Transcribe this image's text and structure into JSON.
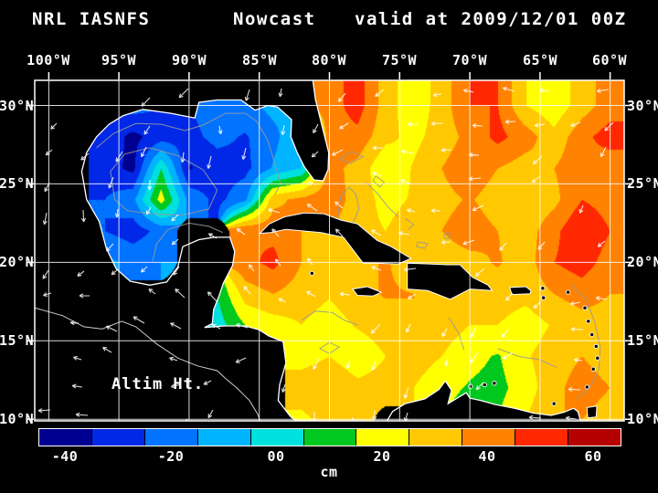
{
  "title": {
    "system": "NRL IASNFS",
    "product": "Nowcast",
    "valid": "valid at 2009/12/01 00Z"
  },
  "map": {
    "field_label": "Altim Ht.",
    "lon_ticks": [
      "100°W",
      "95°W",
      "90°W",
      "85°W",
      "80°W",
      "75°W",
      "70°W",
      "65°W",
      "60°W"
    ],
    "lat_ticks": [
      "30°N",
      "25°N",
      "20°N",
      "15°N",
      "10°N"
    ]
  },
  "chart_data": {
    "type": "heatmap",
    "title": "NRL IASNFS Nowcast valid at 2009/12/01 00Z",
    "variable": "Altim Ht.",
    "units": "cm",
    "null_means": "land or outside model domain (shown black)",
    "lons_degW": [
      100,
      98,
      96,
      94,
      92,
      90,
      88,
      86,
      84,
      82,
      80,
      78,
      76,
      74,
      72,
      70,
      68,
      66,
      64,
      62,
      60
    ],
    "lats_degN": [
      30,
      28,
      26,
      24,
      22,
      20,
      18,
      16,
      14,
      12,
      10
    ],
    "values": [
      [
        null,
        null,
        null,
        -20,
        -25,
        -25,
        -20,
        -18,
        -12,
        null,
        40,
        50,
        30,
        18,
        30,
        45,
        45,
        25,
        18,
        30,
        40
      ],
      [
        null,
        null,
        -28,
        -38,
        -30,
        -28,
        -22,
        -26,
        -18,
        -5,
        40,
        42,
        28,
        22,
        30,
        38,
        48,
        40,
        28,
        42,
        50
      ],
      [
        null,
        null,
        -30,
        -38,
        5,
        -36,
        -30,
        -28,
        -14,
        -5,
        38,
        32,
        16,
        26,
        35,
        42,
        35,
        30,
        35,
        42,
        38
      ],
      [
        null,
        null,
        -25,
        -18,
        20,
        -18,
        -28,
        -18,
        32,
        38,
        42,
        30,
        22,
        26,
        32,
        36,
        30,
        26,
        32,
        45,
        40
      ],
      [
        null,
        null,
        -25,
        -30,
        -22,
        null,
        null,
        45,
        42,
        35,
        35,
        28,
        25,
        30,
        35,
        40,
        35,
        30,
        42,
        55,
        45
      ],
      [
        null,
        null,
        -12,
        -18,
        -15,
        null,
        null,
        42,
        48,
        35,
        32,
        32,
        36,
        30,
        30,
        32,
        36,
        30,
        45,
        50,
        40
      ],
      [
        null,
        null,
        null,
        null,
        null,
        null,
        5,
        30,
        35,
        30,
        26,
        32,
        36,
        35,
        30,
        30,
        30,
        28,
        35,
        40,
        35
      ],
      [
        null,
        null,
        null,
        null,
        null,
        null,
        0,
        15,
        20,
        25,
        20,
        26,
        30,
        35,
        30,
        25,
        25,
        20,
        26,
        30,
        30
      ],
      [
        null,
        null,
        null,
        null,
        null,
        null,
        null,
        null,
        null,
        20,
        25,
        18,
        25,
        30,
        25,
        18,
        14,
        24,
        30,
        35,
        30
      ],
      [
        null,
        null,
        null,
        null,
        null,
        null,
        null,
        null,
        null,
        32,
        35,
        28,
        30,
        25,
        18,
        14,
        12,
        20,
        32,
        40,
        35
      ],
      [
        null,
        null,
        null,
        null,
        null,
        null,
        null,
        null,
        null,
        22,
        30,
        26,
        null,
        null,
        null,
        10,
        15,
        25,
        35,
        35,
        30
      ]
    ],
    "colorbar": {
      "min": -45,
      "max": 65,
      "step": 10,
      "colors": [
        "#000090",
        "#0028e6",
        "#0073ff",
        "#00b4ff",
        "#00e0dc",
        "#00c81e",
        "#ffff00",
        "#ffc800",
        "#ff8200",
        "#ff2800",
        "#b40000"
      ],
      "tick_labels": [
        "-40",
        "-20",
        "00",
        "20",
        "40",
        "60"
      ],
      "tick_values": [
        -40,
        -20,
        0,
        20,
        40,
        60
      ],
      "unit": "cm",
      "position": "bottom"
    },
    "grid_lines": {
      "lon_step_deg": 5,
      "lat_step_deg": 5,
      "color": "#ffffff"
    }
  }
}
